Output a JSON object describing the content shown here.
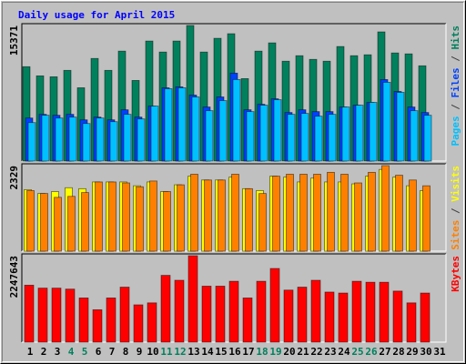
{
  "title": "Daily usage for April 2015",
  "legend_separator": " / ",
  "categories": [
    "1",
    "2",
    "3",
    "4",
    "5",
    "6",
    "7",
    "8",
    "9",
    "10",
    "11",
    "12",
    "13",
    "14",
    "15",
    "16",
    "17",
    "18",
    "19",
    "20",
    "21",
    "22",
    "23",
    "24",
    "25",
    "26",
    "27",
    "28",
    "29",
    "30",
    "31"
  ],
  "category_colors": [
    "#000000",
    "#000000",
    "#000000",
    "#00805c",
    "#00805c",
    "#000000",
    "#000000",
    "#000000",
    "#000000",
    "#000000",
    "#00805c",
    "#00805c",
    "#000000",
    "#000000",
    "#000000",
    "#000000",
    "#000000",
    "#00805c",
    "#00805c",
    "#000000",
    "#000000",
    "#000000",
    "#000000",
    "#000000",
    "#00805c",
    "#00805c",
    "#000000",
    "#000000",
    "#000000",
    "#000000",
    "#000000"
  ],
  "chart_data": [
    {
      "type": "bar",
      "ylim": [
        0,
        15371
      ],
      "yticks": [
        15371
      ],
      "series": [
        {
          "name": "Hits",
          "color": "#00805c",
          "values": [
            10698,
            9659,
            9555,
            10282,
            8309,
            11632,
            10282,
            12463,
            9140,
            13606,
            12359,
            13606,
            15371,
            12359,
            13917,
            14437,
            9347,
            12463,
            13398,
            11321,
            11944,
            11528,
            11321,
            12983,
            11944,
            12048,
            14644,
            12255,
            12152,
            10801,
            null
          ]
        },
        {
          "name": "Files",
          "color": "#0040ff",
          "values": [
            4881,
            5297,
            5193,
            5297,
            4674,
            4985,
            4674,
            5816,
            4985,
            6232,
            8309,
            8413,
            7478,
            6128,
            7270,
            9971,
            5816,
            6439,
            7062,
            5505,
            5816,
            5608,
            5608,
            6128,
            6335,
            6647,
            9244,
            7893,
            6128,
            5505,
            null
          ]
        },
        {
          "name": "Pages",
          "color": "#00c0ff",
          "values": [
            4362,
            5193,
            4881,
            4985,
            4258,
            4881,
            4466,
            5297,
            4778,
            6232,
            8205,
            8309,
            7270,
            5712,
            6855,
            9244,
            5608,
            6335,
            6959,
            5297,
            5401,
            5089,
            5297,
            6128,
            6335,
            6647,
            8932,
            7790,
            5712,
            5193,
            null
          ]
        }
      ]
    },
    {
      "type": "bar",
      "ylim": [
        0,
        2329
      ],
      "yticks": [
        2329
      ],
      "series": [
        {
          "name": "Visits",
          "color": "#ffff00",
          "values": [
            1675,
            1570,
            1623,
            1727,
            1701,
            1884,
            1884,
            1884,
            1780,
            1884,
            1623,
            1806,
            2041,
            1937,
            1937,
            2015,
            1701,
            1649,
            2041,
            2015,
            1884,
            1989,
            1884,
            1884,
            1832,
            2041,
            2224,
            2015,
            1780,
            1649,
            null
          ]
        },
        {
          "name": "Sites",
          "color": "#ff8000",
          "values": [
            1649,
            1570,
            1466,
            1492,
            1596,
            1884,
            1884,
            1858,
            1753,
            1910,
            1623,
            1806,
            2094,
            1937,
            1937,
            2094,
            1701,
            1570,
            2041,
            2094,
            2094,
            2094,
            2146,
            2094,
            1858,
            2146,
            2329,
            2067,
            1937,
            1780,
            null
          ]
        }
      ]
    },
    {
      "type": "bar",
      "ylim": [
        0,
        2247643
      ],
      "yticks": [
        2247643
      ],
      "series": [
        {
          "name": "KBytes",
          "color": "#ff0000",
          "values": [
            1481400,
            1404800,
            1404800,
            1379200,
            1149300,
            842900,
            1149300,
            1430300,
            970600,
            1021600,
            1736800,
            1609100,
            2247643,
            1455800,
            1455800,
            1583500,
            1149300,
            1583500,
            1915600,
            1353700,
            1430300,
            1609100,
            1302600,
            1277100,
            1583500,
            1558000,
            1558000,
            1328100,
            1021600,
            1277100,
            null
          ]
        }
      ]
    }
  ]
}
